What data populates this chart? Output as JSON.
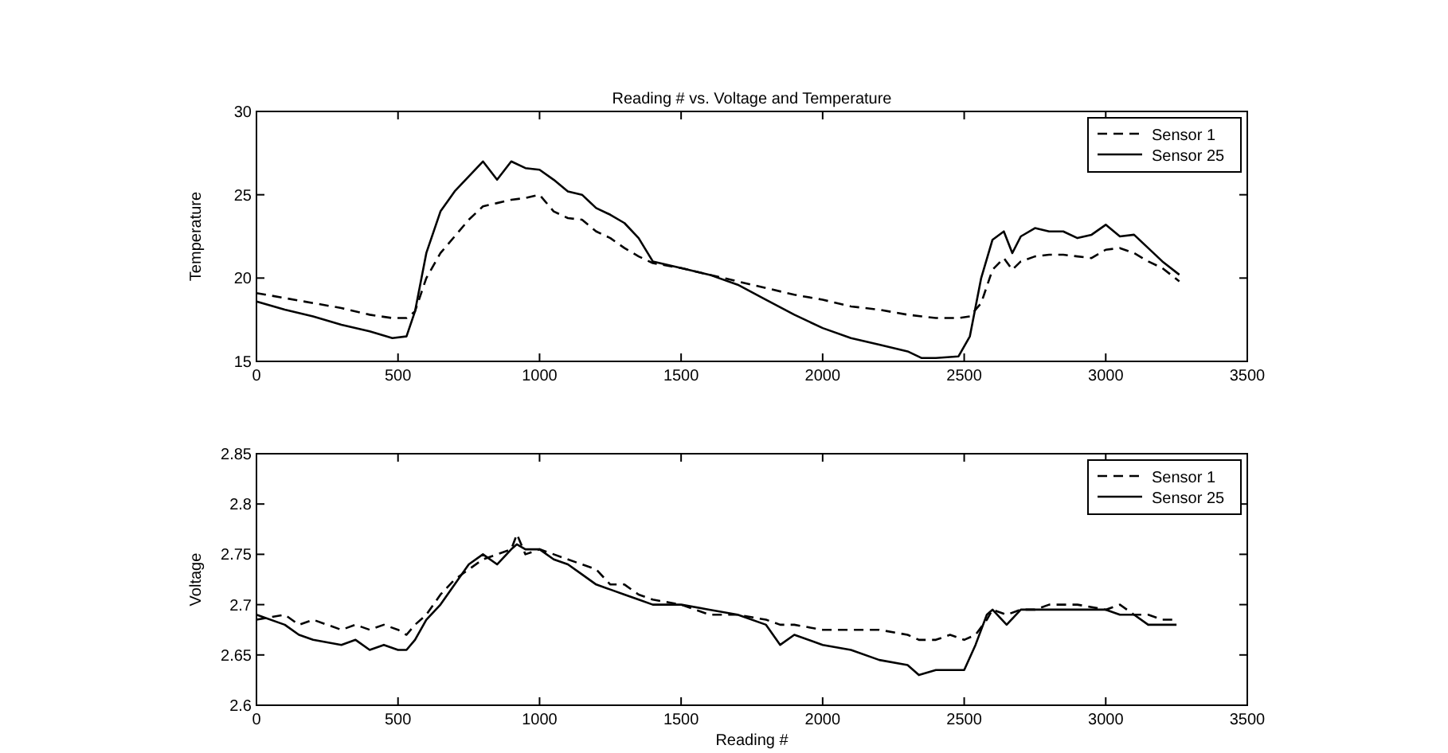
{
  "chart_data": [
    {
      "type": "line",
      "title": "Reading # vs. Voltage and Temperature",
      "ylabel": "Temperature",
      "xlim": [
        0,
        3500
      ],
      "xticks": [
        0,
        500,
        1000,
        1500,
        2000,
        2500,
        3000,
        3500
      ],
      "ylim": [
        15,
        30
      ],
      "yticks": [
        15,
        20,
        25,
        30
      ],
      "legend": "top right",
      "grid": false,
      "x": [
        0,
        100,
        200,
        300,
        400,
        480,
        530,
        560,
        600,
        650,
        700,
        750,
        800,
        850,
        900,
        950,
        1000,
        1050,
        1100,
        1150,
        1200,
        1250,
        1300,
        1350,
        1400,
        1500,
        1600,
        1700,
        1800,
        1900,
        2000,
        2100,
        2200,
        2300,
        2350,
        2400,
        2480,
        2520,
        2560,
        2600,
        2640,
        2670,
        2700,
        2750,
        2800,
        2850,
        2900,
        2950,
        3000,
        3050,
        3100,
        3150,
        3200,
        3260
      ],
      "series": [
        {
          "name": "Sensor 1",
          "color": "#000000",
          "line_style": "dashed",
          "values": [
            19.1,
            18.8,
            18.5,
            18.2,
            17.8,
            17.6,
            17.6,
            18,
            20,
            21.5,
            22.5,
            23.5,
            24.3,
            24.5,
            24.7,
            24.8,
            25,
            24,
            23.6,
            23.5,
            22.8,
            22.4,
            21.8,
            21.3,
            20.9,
            20.6,
            20.2,
            19.8,
            19.4,
            19,
            18.7,
            18.3,
            18.1,
            17.8,
            17.7,
            17.6,
            17.6,
            17.7,
            18.5,
            20.5,
            21.2,
            20.5,
            21,
            21.3,
            21.4,
            21.4,
            21.3,
            21.2,
            21.7,
            21.8,
            21.5,
            21,
            20.6,
            19.8
          ]
        },
        {
          "name": "Sensor 25",
          "color": "#000000",
          "line_style": "solid",
          "values": [
            18.6,
            18.1,
            17.7,
            17.2,
            16.8,
            16.4,
            16.5,
            18,
            21.5,
            24,
            25.2,
            26.1,
            27,
            25.9,
            27,
            26.6,
            26.5,
            25.9,
            25.2,
            25,
            24.2,
            23.8,
            23.3,
            22.4,
            21,
            20.6,
            20.2,
            19.6,
            18.7,
            17.8,
            17,
            16.4,
            16,
            15.6,
            15.2,
            15.2,
            15.3,
            16.5,
            20,
            22.3,
            22.8,
            21.5,
            22.5,
            23,
            22.8,
            22.8,
            22.4,
            22.6,
            23.2,
            22.5,
            22.6,
            21.8,
            21,
            20.2
          ]
        }
      ]
    },
    {
      "type": "line",
      "xlabel": "Reading #",
      "ylabel": "Voltage",
      "xlim": [
        0,
        3500
      ],
      "xticks": [
        0,
        500,
        1000,
        1500,
        2000,
        2500,
        3000,
        3500
      ],
      "ylim": [
        2.6,
        2.85
      ],
      "yticks": [
        2.6,
        2.65,
        2.7,
        2.75,
        2.8,
        2.85
      ],
      "legend": "top right",
      "grid": false,
      "x": [
        0,
        100,
        150,
        200,
        300,
        350,
        400,
        450,
        500,
        530,
        560,
        600,
        650,
        700,
        750,
        800,
        850,
        900,
        920,
        950,
        1000,
        1050,
        1100,
        1150,
        1200,
        1250,
        1300,
        1350,
        1400,
        1500,
        1600,
        1700,
        1800,
        1850,
        1900,
        2000,
        2100,
        2200,
        2300,
        2340,
        2400,
        2450,
        2500,
        2540,
        2580,
        2600,
        2650,
        2700,
        2750,
        2800,
        2900,
        3000,
        3050,
        3100,
        3150,
        3200,
        3250
      ],
      "series": [
        {
          "name": "Sensor 1",
          "color": "#000000",
          "line_style": "dashed",
          "values": [
            2.685,
            2.69,
            2.68,
            2.685,
            2.675,
            2.68,
            2.675,
            2.68,
            2.675,
            2.67,
            2.68,
            2.69,
            2.71,
            2.725,
            2.735,
            2.745,
            2.75,
            2.755,
            2.77,
            2.75,
            2.755,
            2.75,
            2.745,
            2.74,
            2.735,
            2.72,
            2.72,
            2.71,
            2.705,
            2.7,
            2.69,
            2.69,
            2.685,
            2.68,
            2.68,
            2.675,
            2.675,
            2.675,
            2.67,
            2.665,
            2.665,
            2.67,
            2.665,
            2.67,
            2.685,
            2.695,
            2.69,
            2.695,
            2.695,
            2.7,
            2.7,
            2.695,
            2.7,
            2.69,
            2.69,
            2.685,
            2.685
          ]
        },
        {
          "name": "Sensor 25",
          "color": "#000000",
          "line_style": "solid",
          "values": [
            2.69,
            2.68,
            2.67,
            2.665,
            2.66,
            2.665,
            2.655,
            2.66,
            2.655,
            2.655,
            2.665,
            2.685,
            2.7,
            2.72,
            2.74,
            2.75,
            2.74,
            2.755,
            2.76,
            2.755,
            2.755,
            2.745,
            2.74,
            2.73,
            2.72,
            2.715,
            2.71,
            2.705,
            2.7,
            2.7,
            2.695,
            2.69,
            2.68,
            2.66,
            2.67,
            2.66,
            2.655,
            2.645,
            2.64,
            2.63,
            2.635,
            2.635,
            2.635,
            2.66,
            2.69,
            2.695,
            2.68,
            2.695,
            2.695,
            2.695,
            2.695,
            2.695,
            2.69,
            2.69,
            2.68,
            2.68,
            2.68
          ]
        }
      ]
    }
  ]
}
